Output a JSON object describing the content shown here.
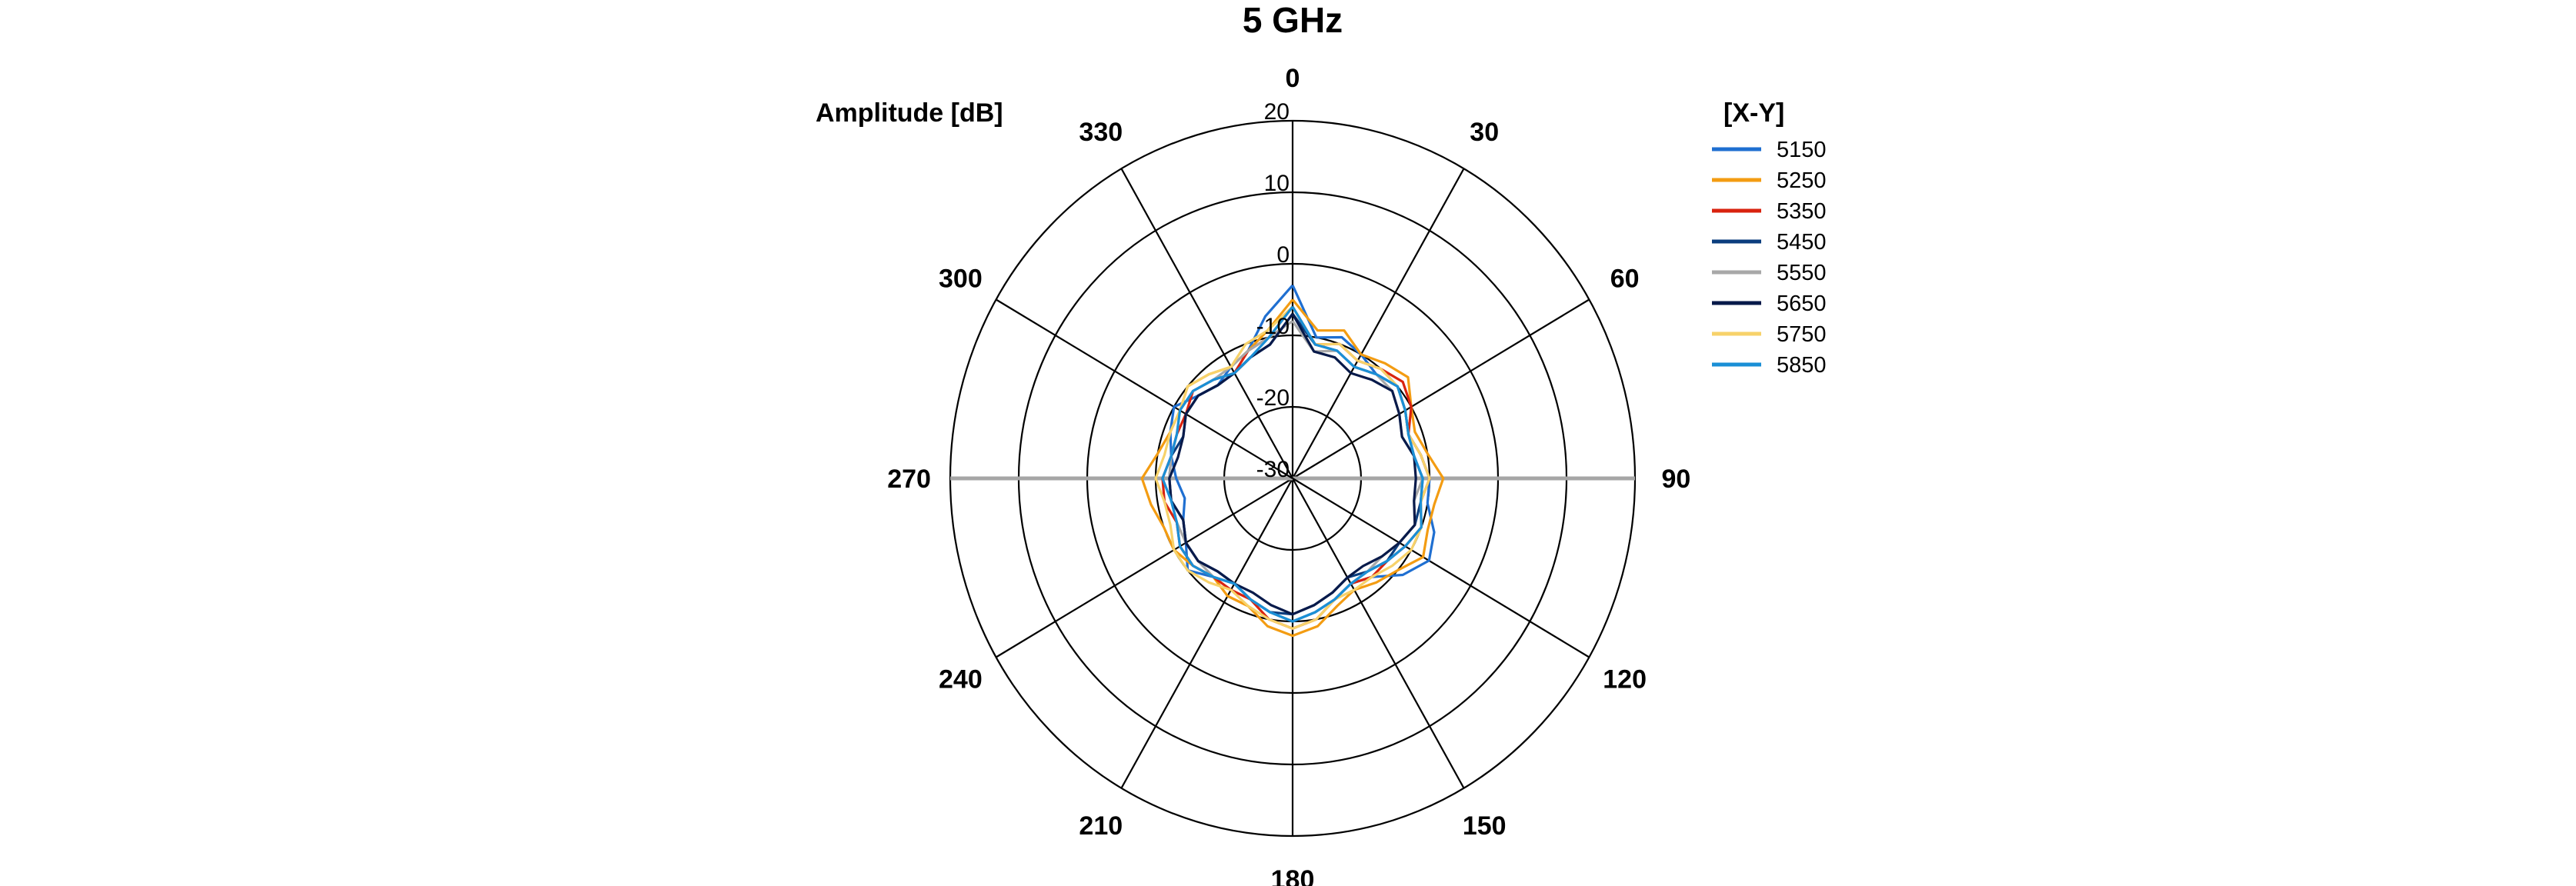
{
  "chart_data": {
    "type": "line",
    "subtype": "polar",
    "title": "5 GHz",
    "radial_axis_label": "Amplitude [dB]",
    "rlim": [
      -30,
      20
    ],
    "radial_ticks": [
      -30,
      -20,
      -10,
      0,
      10,
      20
    ],
    "angle_ticks": [
      0,
      30,
      60,
      90,
      120,
      150,
      180,
      210,
      240,
      270,
      300,
      330
    ],
    "angle_direction": "clockwise",
    "angle_zero": "top",
    "grid": true,
    "legend": {
      "title": "[X-Y]",
      "position": "right"
    },
    "angles": [
      0,
      10,
      20,
      30,
      40,
      50,
      60,
      70,
      80,
      90,
      100,
      110,
      120,
      130,
      140,
      150,
      160,
      170,
      180,
      190,
      200,
      210,
      220,
      230,
      240,
      250,
      260,
      270,
      280,
      290,
      300,
      310,
      320,
      330,
      340,
      350
    ],
    "series": [
      {
        "name": "5150",
        "color": "#1f6fd1",
        "values": [
          -3,
          -10,
          -9,
          -10,
          -11,
          -10,
          -11,
          -12,
          -11,
          -10,
          -10,
          -8,
          -7,
          -9,
          -12,
          -13,
          -12,
          -11,
          -10,
          -11,
          -12,
          -13,
          -12,
          -10,
          -12,
          -13,
          -14,
          -13,
          -12,
          -11,
          -10,
          -12,
          -13,
          -12,
          -11,
          -7
        ]
      },
      {
        "name": "5250",
        "color": "#f39c12",
        "values": [
          -5,
          -9,
          -8,
          -10,
          -9,
          -8,
          -10,
          -11,
          -10,
          -8,
          -9,
          -9,
          -8,
          -10,
          -11,
          -12,
          -11,
          -9,
          -8,
          -9,
          -11,
          -11,
          -12,
          -11,
          -10,
          -10,
          -9,
          -8,
          -10,
          -11,
          -11,
          -10,
          -11,
          -12,
          -11,
          -9
        ]
      },
      {
        "name": "5350",
        "color": "#d9230f",
        "values": [
          -6,
          -11,
          -10,
          -11,
          -10,
          -9,
          -10,
          -12,
          -11,
          -10,
          -11,
          -10,
          -11,
          -12,
          -12,
          -13,
          -12,
          -10,
          -9,
          -10,
          -12,
          -12,
          -12,
          -11,
          -11,
          -12,
          -11,
          -11,
          -12,
          -12,
          -12,
          -11,
          -12,
          -13,
          -11,
          -10
        ]
      },
      {
        "name": "5450",
        "color": "#0b3d7e",
        "values": [
          -7,
          -11,
          -11,
          -12,
          -11,
          -10,
          -11,
          -12,
          -12,
          -11,
          -11,
          -11,
          -12,
          -12,
          -13,
          -14,
          -13,
          -12,
          -11,
          -11,
          -12,
          -13,
          -13,
          -12,
          -12,
          -13,
          -12,
          -12,
          -12,
          -13,
          -12,
          -12,
          -13,
          -13,
          -12,
          -11
        ]
      },
      {
        "name": "5550",
        "color": "#a8a8a8",
        "values": [
          -8,
          -12,
          -11,
          -12,
          -11,
          -11,
          -12,
          -13,
          -12,
          -11,
          -12,
          -11,
          -12,
          -13,
          -13,
          -13,
          -12,
          -11,
          -10,
          -11,
          -12,
          -13,
          -12,
          -12,
          -12,
          -12,
          -12,
          -12,
          -12,
          -12,
          -11,
          -11,
          -12,
          -12,
          -11,
          -10
        ]
      },
      {
        "name": "5650",
        "color": "#081a4a",
        "values": [
          -7,
          -12,
          -12,
          -13,
          -12,
          -11,
          -12,
          -13,
          -12,
          -12,
          -12,
          -11,
          -12,
          -13,
          -14,
          -14,
          -13,
          -12,
          -11,
          -12,
          -13,
          -13,
          -13,
          -12,
          -12,
          -13,
          -12,
          -12,
          -13,
          -13,
          -12,
          -12,
          -13,
          -13,
          -12,
          -11
        ]
      },
      {
        "name": "5750",
        "color": "#f7d26a",
        "values": [
          -6,
          -11,
          -10,
          -11,
          -10,
          -10,
          -11,
          -12,
          -11,
          -10,
          -11,
          -10,
          -10,
          -11,
          -12,
          -12,
          -12,
          -10,
          -9,
          -10,
          -11,
          -12,
          -11,
          -10,
          -10,
          -11,
          -11,
          -10,
          -11,
          -11,
          -11,
          -10,
          -11,
          -12,
          -10,
          -9
        ]
      },
      {
        "name": "5850",
        "color": "#1a8fd6",
        "values": [
          -6,
          -11,
          -11,
          -12,
          -11,
          -10,
          -11,
          -12,
          -12,
          -11,
          -11,
          -10,
          -11,
          -12,
          -13,
          -13,
          -12,
          -11,
          -10,
          -11,
          -12,
          -13,
          -12,
          -11,
          -11,
          -12,
          -12,
          -11,
          -12,
          -12,
          -11,
          -11,
          -12,
          -13,
          -12,
          -10
        ]
      }
    ]
  }
}
